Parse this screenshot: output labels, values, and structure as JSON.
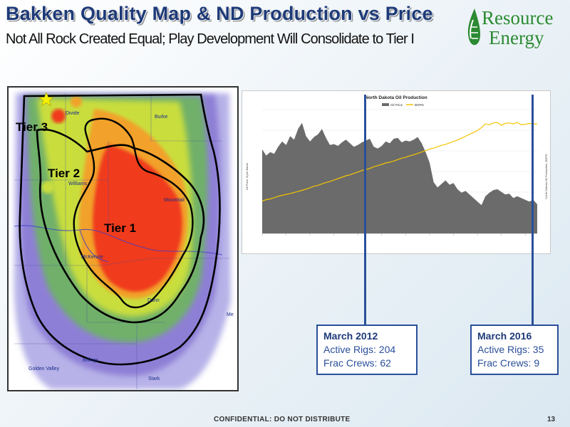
{
  "slide": {
    "title": "Bakken Quality Map & ND Production vs Price",
    "subtitle": "Not All Rock Created Equal; Play Development Will Consolidate to Tier I"
  },
  "logo": {
    "line1": "Resource",
    "line2": "Energy",
    "brand_color": "#2c8a32"
  },
  "map": {
    "tiers": [
      "Tier 3",
      "Tier 2",
      "Tier 1"
    ],
    "places": [
      "Divide",
      "Burke",
      "Williams",
      "Mountrail",
      "McKenzie",
      "Dunn",
      "Golden Valley",
      "Billings",
      "Stark",
      "Me"
    ],
    "star_icon": "star-icon",
    "heat_colors": [
      "#8e7fd6",
      "#6fb06a",
      "#c9de3c",
      "#f2a12a",
      "#f03a1e"
    ]
  },
  "chart": {
    "title": "North Dakota Oil Production",
    "legend": [
      "Oil Price",
      "BOPD"
    ],
    "ylabel_left": "Oil Price, $ per Barrel",
    "ylabel_right": "North Dakota Oil Production, BOPD",
    "colors": {
      "price": "#6b6b6b",
      "production": "#f5c400"
    }
  },
  "chart_data": {
    "type": "area",
    "title": "North Dakota Oil Production",
    "series": [
      {
        "name": "Oil Price",
        "type": "area",
        "axis": "left",
        "values": [
          95,
          88,
          92,
          90,
          98,
          104,
          100,
          110,
          106,
          118,
          125,
          110,
          104,
          109,
          112,
          118,
          108,
          100,
          101,
          99,
          103,
          106,
          102,
          98,
          100,
          103,
          105,
          107,
          98,
          96,
          99,
          104,
          102,
          107,
          108,
          103,
          105,
          104,
          106,
          109,
          102,
          92,
          80,
          58,
          52,
          56,
          60,
          55,
          57,
          50,
          46,
          48,
          44,
          40,
          36,
          32,
          42,
          46,
          49,
          50,
          47,
          44,
          45,
          40,
          42,
          40,
          38,
          36,
          38,
          33
        ]
      },
      {
        "name": "BOPD",
        "type": "line",
        "axis": "right",
        "values": [
          340,
          355,
          362,
          375,
          390,
          400,
          410,
          418,
          430,
          440,
          452,
          465,
          480,
          495,
          505,
          520,
          535,
          545,
          560,
          575,
          590,
          605,
          615,
          630,
          645,
          660,
          670,
          682,
          700,
          712,
          725,
          740,
          748,
          760,
          775,
          790,
          800,
          815,
          825,
          840,
          855,
          870,
          885,
          895,
          910,
          925,
          935,
          950,
          965,
          980,
          1000,
          1020,
          1040,
          1060,
          1080,
          1110,
          1150,
          1140,
          1160,
          1165,
          1135,
          1155,
          1160,
          1150,
          1165,
          1140,
          1145,
          1155,
          1150,
          1150
        ]
      }
    ]
  },
  "callouts": [
    {
      "title": "March 2012",
      "rigs": "Active Rigs: 204",
      "crews": "Frac Crews: 62"
    },
    {
      "title": "March 2016",
      "rigs": "Active Rigs: 35",
      "crews": "Frac Crews: 9"
    }
  ],
  "footer": {
    "text": "CONFIDENTIAL:  DO NOT DISTRIBUTE",
    "page_number": "13"
  }
}
